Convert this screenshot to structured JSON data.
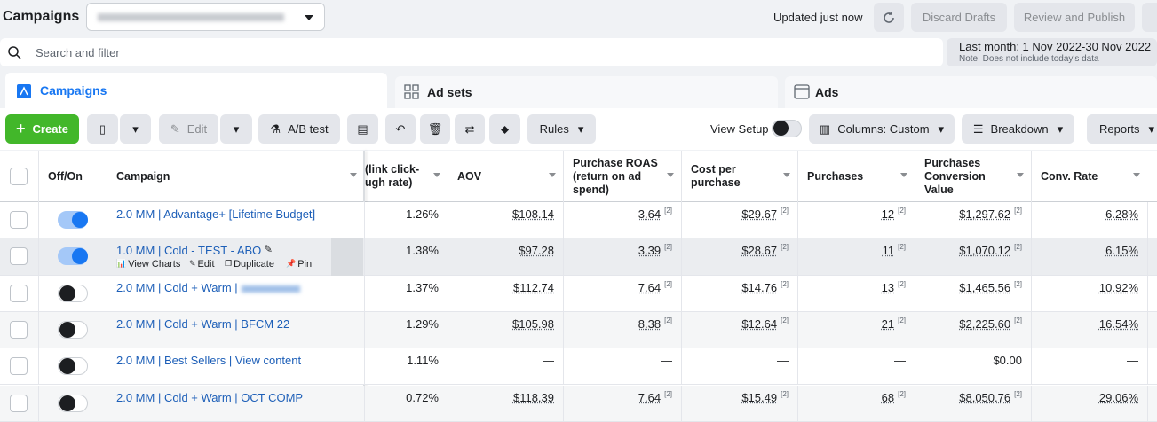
{
  "header": {
    "title": "Campaigns",
    "status": "Updated just now",
    "discard": "Discard Drafts",
    "publish": "Review and Publish"
  },
  "search": {
    "placeholder": "Search and filter",
    "date": "Last month: 1 Nov 2022-30 Nov 2022",
    "note": "Note: Does not include today's data"
  },
  "tabs": [
    "Campaigns",
    "Ad sets",
    "Ads"
  ],
  "toolbar": {
    "create": "Create",
    "edit": "Edit",
    "ab_test": "A/B test",
    "rules": "Rules",
    "view_setup": "View Setup",
    "columns": "Columns: Custom",
    "breakdown": "Breakdown",
    "reports": "Reports"
  },
  "table": {
    "columns": [
      "Off/On",
      "Campaign",
      "(link click-\nugh rate)",
      "AOV",
      "Purchase ROAS\n(return on ad\nspend)",
      "Cost per\npurchase",
      "Purchases",
      "Purchases\nConversion\nValue",
      "Conv. Rate"
    ],
    "row_actions": [
      "View Charts",
      "Edit",
      "Duplicate",
      "Pin"
    ],
    "rows": [
      {
        "on": true,
        "name": "2.0 MM | Advantage+ [Lifetime Budget]",
        "cells": [
          "1.26%",
          {
            "text": "$108.14"
          },
          {
            "text": "3.64",
            "note": "[2]"
          },
          {
            "text": "$29.67",
            "note": "[2]"
          },
          {
            "text": "12",
            "note": "[2]"
          },
          {
            "text": "$1,297.62",
            "note": "[2]"
          },
          {
            "text": "6.28%"
          }
        ]
      },
      {
        "on": true,
        "hover": true,
        "name": "1.0 MM | Cold - TEST - ABO",
        "cells": [
          "1.38%",
          {
            "text": "$97.28"
          },
          {
            "text": "3.39",
            "note": "[2]"
          },
          {
            "text": "$28.67",
            "note": "[2]"
          },
          {
            "text": "11",
            "note": "[2]"
          },
          {
            "text": "$1,070.12",
            "note": "[2]"
          },
          {
            "text": "6.15%"
          }
        ]
      },
      {
        "on": false,
        "name": "2.0 MM | Cold + Warm |",
        "blurred": true,
        "cells": [
          "1.37%",
          {
            "text": "$112.74"
          },
          {
            "text": "7.64",
            "note": "[2]"
          },
          {
            "text": "$14.76",
            "note": "[2]"
          },
          {
            "text": "13",
            "note": "[2]"
          },
          {
            "text": "$1,465.56",
            "note": "[2]"
          },
          {
            "text": "10.92%"
          }
        ]
      },
      {
        "on": false,
        "name": "2.0 MM | Cold + Warm | BFCM 22",
        "cells": [
          "1.29%",
          {
            "text": "$105.98"
          },
          {
            "text": "8.38",
            "note": "[2]"
          },
          {
            "text": "$12.64",
            "note": "[2]"
          },
          {
            "text": "21",
            "note": "[2]"
          },
          {
            "text": "$2,225.60",
            "note": "[2]"
          },
          {
            "text": "16.54%"
          }
        ]
      },
      {
        "on": false,
        "name": "2.0 MM | Best Sellers | View content",
        "cells": [
          "1.11%",
          "—",
          "—",
          "—",
          "—",
          "$0.00",
          "—"
        ]
      },
      {
        "on": false,
        "name": "2.0 MM | Cold + Warm | OCT COMP",
        "cells": [
          "0.72%",
          {
            "text": "$118.39"
          },
          {
            "text": "7.64",
            "note": "[2]"
          },
          {
            "text": "$15.49",
            "note": "[2]"
          },
          {
            "text": "68",
            "note": "[2]"
          },
          {
            "text": "$8,050.76",
            "note": "[2]"
          },
          {
            "text": "29.06%"
          }
        ]
      }
    ]
  }
}
